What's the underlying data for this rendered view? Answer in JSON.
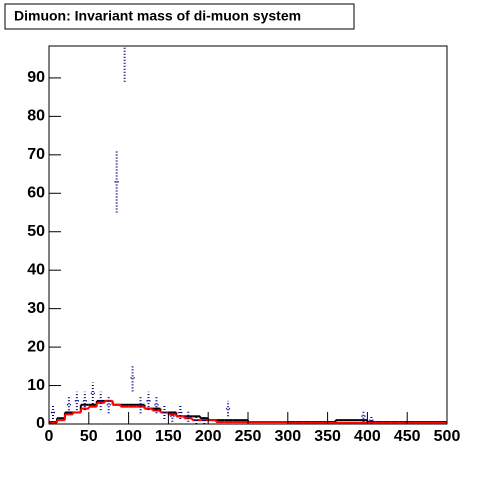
{
  "chart_data": {
    "type": "histogram",
    "title": "Dimuon: Invariant mass of di-muon system",
    "bins": [
      0,
      10,
      20,
      30,
      40,
      50,
      60,
      70,
      80,
      90,
      100,
      110,
      120,
      130,
      140,
      150,
      160,
      170,
      180,
      190,
      200,
      210,
      220,
      230,
      240,
      250,
      260,
      270,
      280,
      290,
      300,
      310,
      320,
      330,
      340,
      350,
      360,
      370,
      380,
      390,
      400,
      410,
      420,
      430,
      440,
      450,
      460,
      470,
      480,
      490,
      500
    ],
    "series": [
      {
        "color": "#000000",
        "style": "step",
        "values": [
          0.5,
          1.5,
          3,
          3,
          5,
          5,
          6,
          6,
          5,
          5,
          5,
          5,
          4,
          4,
          3,
          3,
          2,
          2,
          2,
          1.5,
          1,
          1,
          1,
          1,
          1,
          0.5,
          0.5,
          0.5,
          0.5,
          0.5,
          0.5,
          0.5,
          0.5,
          0.5,
          0.5,
          0.5,
          1,
          1,
          1,
          1,
          0.5,
          0.5,
          0.5,
          0.5,
          0.5,
          0.5,
          0.5,
          0.5,
          0.5,
          0.5
        ]
      },
      {
        "color": "#ff0000",
        "style": "step",
        "values": [
          0.3,
          1,
          2.5,
          3,
          4,
          4.5,
          5.5,
          6,
          5,
          4.5,
          4.5,
          4.5,
          4,
          3.5,
          3,
          2.5,
          2,
          1.5,
          1,
          1,
          1,
          0.5,
          0.5,
          0.5,
          0.5,
          0.5,
          0.5,
          0.5,
          0.5,
          0.5,
          0.3,
          0.3,
          0.3,
          0.3,
          0.3,
          0.3,
          0.3,
          0.3,
          0.3,
          0.3,
          0.3,
          0.3,
          0.3,
          0.3,
          0.3,
          0.3,
          0.3,
          0.3,
          0.3,
          0.3
        ]
      },
      {
        "color": "#00007f",
        "style": "errorbar",
        "values": [
          3,
          0,
          5,
          6,
          6,
          8,
          6,
          5,
          63,
          99,
          12,
          5,
          6,
          5,
          3,
          2,
          3,
          2,
          1,
          1,
          0,
          0,
          4,
          0,
          0,
          0,
          0,
          0,
          0,
          0,
          0,
          0,
          0,
          0,
          0,
          0,
          0,
          0,
          0,
          2,
          1,
          0,
          0,
          0,
          0,
          0,
          0,
          0,
          0,
          0
        ],
        "errors": [
          1.7,
          0,
          2.2,
          2.4,
          2.4,
          2.8,
          2.4,
          2.2,
          8,
          10,
          3.5,
          2.2,
          2.4,
          2.2,
          1.7,
          1.4,
          1.7,
          1.4,
          1,
          1,
          0,
          0,
          2,
          0,
          0,
          0,
          0,
          0,
          0,
          0,
          0,
          0,
          0,
          0,
          0,
          0,
          0,
          0,
          0,
          1.4,
          1,
          0,
          0,
          0,
          0,
          0,
          0,
          0,
          0,
          0
        ]
      }
    ],
    "xlim": [
      0,
      500
    ],
    "xticks": [
      0,
      50,
      100,
      150,
      200,
      250,
      300,
      350,
      400,
      450,
      500
    ],
    "ylim": [
      0,
      98.3
    ],
    "yticks": [
      0,
      10,
      20,
      30,
      40,
      50,
      60,
      70,
      80,
      90
    ]
  }
}
